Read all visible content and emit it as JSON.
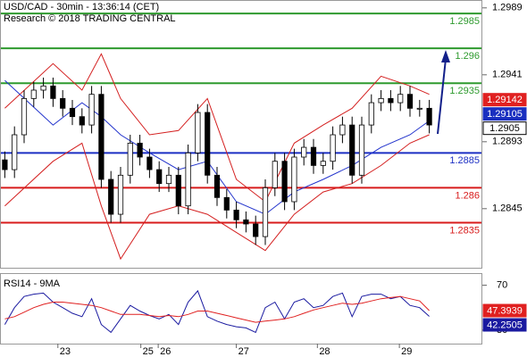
{
  "chart_data": [
    {
      "type": "candlestick",
      "title": "USD/CAD - 30min - 13:36:14 (CET)",
      "subtitle": "Research © 2018 TRADING CENTRAL",
      "x": [
        0,
        1,
        2,
        3,
        4,
        5,
        6,
        7,
        8,
        9,
        10,
        11,
        12,
        13,
        14,
        15,
        16,
        17,
        18,
        19,
        20,
        21,
        22,
        23,
        24,
        25,
        26,
        27,
        28,
        29,
        30,
        31,
        32,
        33,
        34,
        35,
        36,
        37,
        38,
        39,
        40,
        41,
        42,
        43,
        44
      ],
      "open": [
        1.288,
        1.2873,
        1.2898,
        1.2924,
        1.293,
        1.2933,
        1.2924,
        1.2917,
        1.2911,
        1.2905,
        1.2927,
        1.2866,
        1.2841,
        1.2869,
        1.2892,
        1.2882,
        1.2873,
        1.2863,
        1.2869,
        1.2847,
        1.2885,
        1.2914,
        1.2869,
        1.2853,
        1.2844,
        1.2837,
        1.2834,
        1.2825,
        1.286,
        1.2879,
        1.285,
        1.2882,
        1.2889,
        1.2876,
        1.2879,
        1.2898,
        1.2905,
        1.2869,
        1.2905,
        1.2921,
        1.2924,
        1.2921,
        1.2927,
        1.2917,
        1.2917
      ],
      "high": [
        1.2886,
        1.2904,
        1.293,
        1.2936,
        1.2939,
        1.2939,
        1.293,
        1.2923,
        1.2917,
        1.2933,
        1.2933,
        1.2872,
        1.2875,
        1.2898,
        1.2898,
        1.2888,
        1.2879,
        1.2875,
        1.2875,
        1.2891,
        1.292,
        1.292,
        1.2875,
        1.2859,
        1.285,
        1.2843,
        1.284,
        1.2866,
        1.2885,
        1.2885,
        1.2888,
        1.2895,
        1.2895,
        1.2885,
        1.2904,
        1.2911,
        1.2911,
        1.2911,
        1.2927,
        1.293,
        1.293,
        1.2933,
        1.2933,
        1.2923,
        1.2923
      ],
      "low": [
        1.2867,
        1.2867,
        1.2892,
        1.2918,
        1.2924,
        1.2918,
        1.2911,
        1.2905,
        1.2899,
        1.2899,
        1.286,
        1.2835,
        1.2835,
        1.2863,
        1.2876,
        1.2867,
        1.2857,
        1.2857,
        1.2841,
        1.2841,
        1.2879,
        1.2863,
        1.2847,
        1.2838,
        1.2831,
        1.2828,
        1.2819,
        1.2819,
        1.2854,
        1.2844,
        1.2844,
        1.2876,
        1.287,
        1.287,
        1.2873,
        1.2892,
        1.2863,
        1.2863,
        1.2899,
        1.2915,
        1.2915,
        1.2915,
        1.2911,
        1.2911,
        1.2899
      ],
      "close": [
        1.2873,
        1.2898,
        1.2924,
        1.293,
        1.2933,
        1.2924,
        1.2917,
        1.2911,
        1.2905,
        1.2927,
        1.2866,
        1.2841,
        1.2869,
        1.2892,
        1.2882,
        1.2873,
        1.2863,
        1.2869,
        1.2847,
        1.2885,
        1.2914,
        1.2869,
        1.2853,
        1.2844,
        1.2837,
        1.2834,
        1.2825,
        1.286,
        1.2879,
        1.285,
        1.2882,
        1.2889,
        1.2876,
        1.2879,
        1.2898,
        1.2905,
        1.2869,
        1.2905,
        1.2921,
        1.2924,
        1.2921,
        1.2927,
        1.2917,
        1.2917,
        1.2905
      ],
      "color": "#000000",
      "xlim": [
        -0.5,
        49.5
      ],
      "ylim": [
        1.2802,
        1.2994
      ],
      "yticks": [
        1.2989,
        1.2941,
        1.2893,
        1.2845
      ],
      "levels": [
        {
          "value": 1.2985,
          "color": "#2e9a2e"
        },
        {
          "value": 1.296,
          "color": "#2e9a2e"
        },
        {
          "value": 1.2935,
          "color": "#2e9a2e"
        },
        {
          "value": 1.2885,
          "color": "#1c2fc4"
        },
        {
          "value": 1.286,
          "color": "#d81c1c"
        },
        {
          "value": 1.2835,
          "color": "#d81c1c"
        }
      ],
      "overlays": [
        {
          "color": "#d42020",
          "x": [
            0,
            5,
            8,
            10,
            12,
            15,
            18,
            21,
            24,
            27,
            30,
            33,
            36,
            39,
            42,
            44
          ],
          "values": [
            1.2917,
            1.2949,
            1.293,
            1.2956,
            1.2924,
            1.2898,
            1.2901,
            1.2924,
            1.2866,
            1.285,
            1.2892,
            1.2905,
            1.2917,
            1.294,
            1.2933,
            1.2927
          ]
        },
        {
          "color": "#d42020",
          "x": [
            0,
            5,
            8,
            10,
            12,
            15,
            18,
            21,
            24,
            27,
            30,
            33,
            36,
            39,
            42,
            44
          ],
          "values": [
            1.2847,
            1.2879,
            1.2892,
            1.2847,
            1.2809,
            1.2841,
            1.2847,
            1.2841,
            1.2828,
            1.2815,
            1.2841,
            1.2857,
            1.2863,
            1.2876,
            1.2892,
            1.2898
          ]
        },
        {
          "color": "#2233cc",
          "x": [
            0,
            5,
            8,
            10,
            12,
            15,
            18,
            21,
            24,
            27,
            30,
            33,
            36,
            39,
            42,
            44
          ],
          "values": [
            1.2937,
            1.2905,
            1.2921,
            1.2911,
            1.2898,
            1.2885,
            1.2873,
            1.2879,
            1.285,
            1.2841,
            1.2857,
            1.2866,
            1.2876,
            1.2889,
            1.2898,
            1.2908
          ]
        }
      ],
      "price_tags": [
        {
          "value": 1.29142,
          "color": "#e02020"
        },
        {
          "value": 1.29105,
          "color": "#1a2fc0"
        }
      ]
    },
    {
      "type": "line",
      "title": "RSI14 - 9MA",
      "x": [
        0,
        1,
        2,
        3,
        4,
        5,
        6,
        7,
        8,
        9,
        10,
        11,
        12,
        13,
        14,
        15,
        16,
        17,
        18,
        19,
        20,
        21,
        22,
        23,
        24,
        25,
        26,
        27,
        28,
        29,
        30,
        31,
        32,
        33,
        34,
        35,
        36,
        37,
        38,
        39,
        40,
        41,
        42,
        43,
        44
      ],
      "series": [
        {
          "color": "#1a1aa0",
          "values": [
            35,
            50,
            60,
            62,
            63,
            55,
            50,
            45,
            42,
            58,
            35,
            28,
            40,
            52,
            47,
            43,
            40,
            44,
            35,
            55,
            65,
            42,
            38,
            35,
            33,
            32,
            28,
            50,
            55,
            40,
            55,
            58,
            50,
            52,
            60,
            63,
            42,
            60,
            62,
            62,
            58,
            60,
            52,
            50,
            42.2505
          ]
        },
        {
          "color": "#e02020",
          "values": [
            40,
            42,
            46,
            50,
            53,
            55,
            55,
            54,
            53,
            52,
            50,
            47,
            44,
            44,
            44,
            43,
            42,
            43,
            42,
            44,
            47,
            47,
            45,
            43,
            41,
            39,
            37,
            38,
            39,
            40,
            42,
            45,
            48,
            50,
            52,
            54,
            53,
            54,
            56,
            58,
            59,
            60,
            58,
            56,
            47.3939
          ]
        }
      ],
      "xlim": [
        -0.5,
        49.5
      ],
      "ylim": [
        18,
        80
      ],
      "yticks": [
        70,
        30
      ],
      "xticks": [
        {
          "value": 5.5,
          "label": "23"
        },
        {
          "value": 14.1,
          "label": "25"
        },
        {
          "value": 15.9,
          "label": "26"
        },
        {
          "value": 24.0,
          "label": "27"
        },
        {
          "value": 32.4,
          "label": "28"
        },
        {
          "value": 40.9,
          "label": "29"
        }
      ]
    }
  ]
}
